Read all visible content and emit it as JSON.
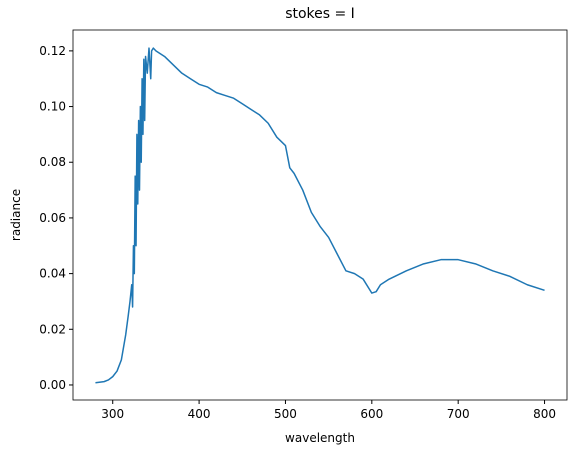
{
  "chart_data": {
    "type": "line",
    "title": "stokes = I",
    "xlabel": "wavelength",
    "ylabel": "radiance",
    "x": [
      280,
      290,
      295,
      300,
      305,
      310,
      315,
      318,
      320,
      322,
      323,
      324,
      325,
      326,
      327,
      328,
      329,
      330,
      331,
      332,
      333,
      334,
      335,
      336,
      337,
      338,
      340,
      342,
      344,
      345,
      347,
      350,
      360,
      370,
      380,
      390,
      400,
      410,
      420,
      430,
      440,
      450,
      460,
      470,
      480,
      490,
      500,
      505,
      510,
      520,
      530,
      540,
      550,
      560,
      570,
      580,
      590,
      600,
      605,
      610,
      620,
      640,
      660,
      680,
      700,
      720,
      740,
      760,
      780,
      800
    ],
    "series": [
      {
        "color": "#1f77b4",
        "values": [
          0.0008,
          0.0012,
          0.0018,
          0.003,
          0.005,
          0.009,
          0.018,
          0.025,
          0.03,
          0.036,
          0.028,
          0.05,
          0.04,
          0.075,
          0.05,
          0.09,
          0.065,
          0.095,
          0.07,
          0.1,
          0.08,
          0.11,
          0.09,
          0.117,
          0.095,
          0.118,
          0.112,
          0.121,
          0.11,
          0.12,
          0.121,
          0.12,
          0.118,
          0.115,
          0.112,
          0.11,
          0.108,
          0.107,
          0.105,
          0.104,
          0.103,
          0.101,
          0.099,
          0.097,
          0.094,
          0.089,
          0.086,
          0.078,
          0.076,
          0.07,
          0.062,
          0.057,
          0.053,
          0.047,
          0.041,
          0.04,
          0.038,
          0.033,
          0.0335,
          0.036,
          0.038,
          0.041,
          0.0435,
          0.045,
          0.045,
          0.0435,
          0.041,
          0.039,
          0.036,
          0.034
        ]
      }
    ],
    "xlim": [
      254,
      826
    ],
    "xticks": [
      300,
      400,
      500,
      600,
      700,
      800
    ],
    "ylim": [
      -0.0054,
      0.1275
    ],
    "yticks": [
      {
        "value": 0,
        "label": "0.00"
      },
      {
        "value": 0.02,
        "label": "0.02"
      },
      {
        "value": 0.04,
        "label": "0.04"
      },
      {
        "value": 0.06,
        "label": "0.06"
      },
      {
        "value": 0.08,
        "label": "0.08"
      },
      {
        "value": 0.1,
        "label": "0.10"
      },
      {
        "value": 0.12,
        "label": "0.12"
      }
    ]
  }
}
